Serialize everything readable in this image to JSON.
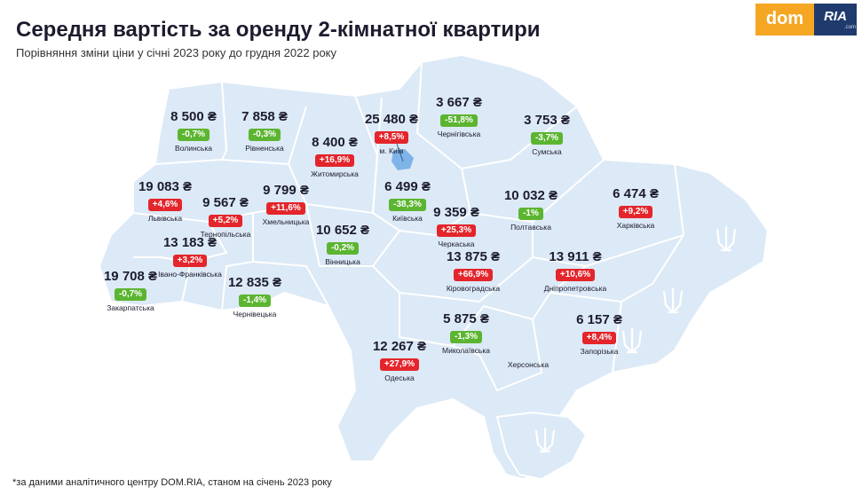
{
  "header": {
    "title": "Середня вартість за оренду 2-кімнатної квартири",
    "subtitle": "Порівняння зміни ціни у січні 2023 року до грудня 2022 року"
  },
  "logo": {
    "dom": "dom",
    "ria": "RIA",
    "com": ".com"
  },
  "footnote": "*за даними аналітичного центру DOM.RIA, станом на січень 2023 року",
  "colors": {
    "map_fill": "#dce9f6",
    "map_stroke": "#ffffff",
    "increase": "#e4252b",
    "decrease": "#5cb531",
    "kyiv_marker": "#7fb4e8"
  },
  "regions": [
    {
      "name": "Волинська",
      "price": "8 500 ₴",
      "change": "-0,7%",
      "direction": "down"
    },
    {
      "name": "Рівненська",
      "price": "7 858 ₴",
      "change": "-0,3%",
      "direction": "down"
    },
    {
      "name": "Житомирська",
      "price": "8 400 ₴",
      "change": "+16,9%",
      "direction": "up"
    },
    {
      "name": "м. Київ",
      "price": "25 480 ₴",
      "change": "+8,5%",
      "direction": "up"
    },
    {
      "name": "Чернігівська",
      "price": "3 667 ₴",
      "change": "-51,8%",
      "direction": "down"
    },
    {
      "name": "Сумська",
      "price": "3 753 ₴",
      "change": "-3,7%",
      "direction": "down"
    },
    {
      "name": "Львівська",
      "price": "19 083 ₴",
      "change": "+4,6%",
      "direction": "up"
    },
    {
      "name": "Тернопільська",
      "price": "9 567 ₴",
      "change": "+5,2%",
      "direction": "up"
    },
    {
      "name": "Хмельницька",
      "price": "9 799 ₴",
      "change": "+11,6%",
      "direction": "up"
    },
    {
      "name": "Київська",
      "price": "6 499 ₴",
      "change": "-38,3%",
      "direction": "down"
    },
    {
      "name": "Полтавська",
      "price": "10 032 ₴",
      "change": "-1%",
      "direction": "down"
    },
    {
      "name": "Харківська",
      "price": "6 474 ₴",
      "change": "+9,2%",
      "direction": "up"
    },
    {
      "name": "Черкаська",
      "price": "9 359 ₴",
      "change": "+25,3%",
      "direction": "up"
    },
    {
      "name": "Вінницька",
      "price": "10 652 ₴",
      "change": "-0,2%",
      "direction": "down"
    },
    {
      "name": "Івано-Франківська",
      "price": "13 183 ₴",
      "change": "+3,2%",
      "direction": "up"
    },
    {
      "name": "Закарпатська",
      "price": "19 708 ₴",
      "change": "-0,7%",
      "direction": "down"
    },
    {
      "name": "Чернівецька",
      "price": "12 835 ₴",
      "change": "-1,4%",
      "direction": "down"
    },
    {
      "name": "Кіровоградська",
      "price": "13 875 ₴",
      "change": "+66,9%",
      "direction": "up"
    },
    {
      "name": "Дніпропетровська",
      "price": "13 911 ₴",
      "change": "+10,6%",
      "direction": "up"
    },
    {
      "name": "Миколаївська",
      "price": "5 875 ₴",
      "change": "-1,3%",
      "direction": "down"
    },
    {
      "name": "Запорізька",
      "price": "6 157 ₴",
      "change": "+8,4%",
      "direction": "up"
    },
    {
      "name": "Одеська",
      "price": "12 267 ₴",
      "change": "+27,9%",
      "direction": "up"
    }
  ],
  "unlabeled_regions": [
    {
      "name": "Херсонська"
    }
  ],
  "occupied_markers": [
    "trident-icon",
    "trident-icon",
    "trident-icon",
    "trident-icon"
  ]
}
